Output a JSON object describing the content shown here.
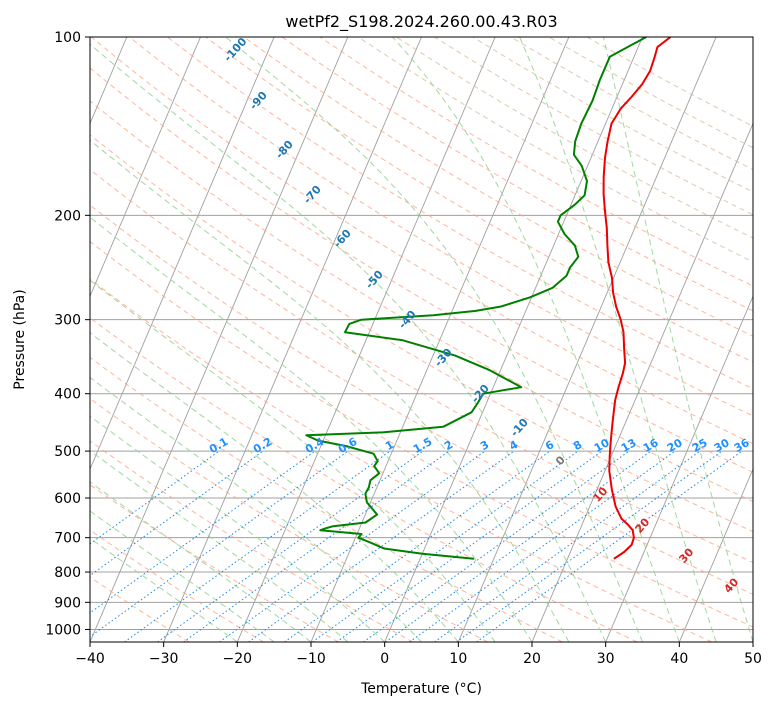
{
  "chart_data": {
    "type": "line",
    "title": "wetPf2_S198.2024.260.00.43.R03",
    "xlabel": "Temperature (°C)",
    "ylabel": "Pressure (hPa)",
    "xlim": [
      -40,
      50
    ],
    "ylim": [
      1050,
      100
    ],
    "y_scale": "log",
    "grid": true,
    "x_ticks": [
      "−40",
      "−30",
      "−20",
      "−10",
      "0",
      "10",
      "20",
      "30",
      "40",
      "50"
    ],
    "y_ticks": [
      "100",
      "200",
      "300",
      "400",
      "500",
      "600",
      "700",
      "800",
      "900",
      "1000"
    ],
    "skew": 35,
    "colors": {
      "temperature": "#ee0000",
      "dewpoint": "#008000",
      "isotherms": "#a0a0a0",
      "isobars": "#a0a0a0",
      "dry_adiabats": "#ff9c7a",
      "moist_adiabats": "#8fd18f",
      "mixing_ratio": "#1e88e5",
      "high_dry_adiabats": "#d9b48f"
    },
    "series": [
      {
        "key": "temperature",
        "points": [
          [
            26.3,
            760
          ],
          [
            27.3,
            740
          ],
          [
            27.9,
            720
          ],
          [
            27.8,
            700
          ],
          [
            27.2,
            680
          ],
          [
            26.2,
            665
          ],
          [
            25,
            650
          ],
          [
            23.5,
            620
          ],
          [
            22,
            580
          ],
          [
            20.6,
            540
          ],
          [
            19.8,
            510
          ],
          [
            19.3,
            490
          ],
          [
            18.8,
            470
          ],
          [
            18.3,
            450
          ],
          [
            17.8,
            430
          ],
          [
            17.3,
            410
          ],
          [
            17,
            390
          ],
          [
            16.8,
            370
          ],
          [
            16.5,
            355
          ],
          [
            15.5,
            335
          ],
          [
            14.5,
            315
          ],
          [
            13.4,
            300
          ],
          [
            12,
            285
          ],
          [
            10.8,
            270
          ],
          [
            9.8,
            255
          ],
          [
            8.4,
            240
          ],
          [
            7.3,
            225
          ],
          [
            6.2,
            210
          ],
          [
            5,
            197
          ],
          [
            3.8,
            184
          ],
          [
            2.8,
            172
          ],
          [
            1.9,
            160
          ],
          [
            1.3,
            150
          ],
          [
            0.8,
            140
          ],
          [
            1.2,
            132
          ],
          [
            2,
            126
          ],
          [
            2.7,
            120
          ],
          [
            3,
            114
          ],
          [
            2.8,
            108
          ],
          [
            2.6,
            104
          ],
          [
            3.8,
            100
          ]
        ]
      },
      {
        "key": "dewpoint",
        "points": [
          [
            7.3,
            760
          ],
          [
            0,
            745
          ],
          [
            -5.5,
            730
          ],
          [
            -7.5,
            715
          ],
          [
            -9.6,
            700
          ],
          [
            -9.4,
            690
          ],
          [
            -15.2,
            680
          ],
          [
            -14.6,
            675
          ],
          [
            -13.8,
            670
          ],
          [
            -9.5,
            660
          ],
          [
            -8.4,
            640
          ],
          [
            -10.5,
            610
          ],
          [
            -11.2,
            590
          ],
          [
            -11.1,
            575
          ],
          [
            -11.3,
            560
          ],
          [
            -10.5,
            545
          ],
          [
            -11.6,
            530
          ],
          [
            -11.4,
            520
          ],
          [
            -12.4,
            505
          ],
          [
            -16.7,
            490
          ],
          [
            -20.7,
            480
          ],
          [
            -22.6,
            470
          ],
          [
            -12.4,
            465
          ],
          [
            -4.5,
            455
          ],
          [
            -1.5,
            430
          ],
          [
            -1.2,
            415
          ],
          [
            -1,
            400
          ],
          [
            3.8,
            390
          ],
          [
            -1.5,
            365
          ],
          [
            -7,
            345
          ],
          [
            -15,
            325
          ],
          [
            -23.3,
            315
          ],
          [
            -23.2,
            305
          ],
          [
            -21.8,
            300
          ],
          [
            -12.3,
            295
          ],
          [
            -6.8,
            290
          ],
          [
            -3.6,
            285
          ],
          [
            -0.2,
            275
          ],
          [
            2.3,
            265
          ],
          [
            3.5,
            253
          ],
          [
            3.5,
            245
          ],
          [
            4,
            235
          ],
          [
            2.9,
            225
          ],
          [
            0.8,
            215
          ],
          [
            -0.8,
            205
          ],
          [
            -0.8,
            200
          ],
          [
            0.5,
            192
          ],
          [
            1.3,
            185
          ],
          [
            0.8,
            175
          ],
          [
            -0.8,
            165
          ],
          [
            -2.5,
            158
          ],
          [
            -3.1,
            150
          ],
          [
            -3.3,
            140
          ],
          [
            -3.1,
            128
          ],
          [
            -3.3,
            118
          ],
          [
            -3.3,
            108
          ],
          [
            0.5,
            100
          ]
        ]
      }
    ],
    "dry_adiabat_labels": [
      "-100",
      "-90",
      "-80",
      "-70",
      "-60",
      "-50",
      "-40",
      "-30",
      "-20",
      "-10",
      "0",
      "10",
      "20",
      "30",
      "40"
    ],
    "mixing_ratio_labels": [
      "0.1",
      "0.2",
      "0.4",
      "0.6",
      "1",
      "1.5",
      "2",
      "3",
      "4",
      "6",
      "8",
      "10",
      "13",
      "16",
      "20",
      "25",
      "30",
      "36"
    ]
  }
}
